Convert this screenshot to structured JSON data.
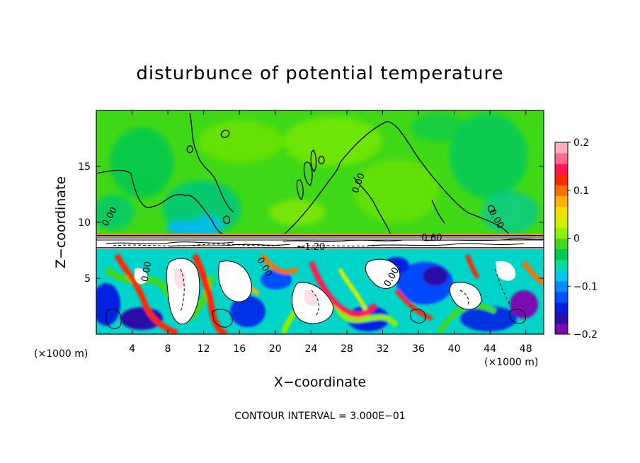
{
  "chart_data": {
    "type": "heatmap",
    "title": "disturbunce of potential temperature",
    "xlabel": "X−coordinate",
    "ylabel": "Z−coordinate",
    "x_unit_left": "(×1000 m)",
    "x_unit_right": "(×1000 m)",
    "footer": "CONTOUR INTERVAL = 3.000E−01",
    "xlim": [
      0,
      50
    ],
    "ylim": [
      0,
      20
    ],
    "x_ticks": [
      4,
      8,
      12,
      16,
      20,
      24,
      28,
      32,
      36,
      40,
      44,
      48
    ],
    "y_ticks": [
      5,
      10,
      15
    ],
    "colorbar": {
      "range": [
        -0.2,
        0.2
      ],
      "tick_values": [
        0.2,
        0.1,
        0,
        -0.1,
        -0.2
      ],
      "tick_labels": [
        "0.2",
        "0.1",
        "0",
        "−0.1",
        "−0.2"
      ],
      "colors": [
        "#7a0bb0",
        "#2a10a8",
        "#0020e0",
        "#0050ff",
        "#008cff",
        "#00c8e8",
        "#00dca0",
        "#00c850",
        "#40d820",
        "#90f000",
        "#d0f000",
        "#f0e000",
        "#ffb000",
        "#ff7000",
        "#ff2800",
        "#ff1a50",
        "#ff6a90",
        "#ffb0b8"
      ]
    },
    "contour_labels": [
      {
        "text": "0.00",
        "x": 1.5,
        "y": 10.5,
        "rotate": -60
      },
      {
        "text": "0.00",
        "x": 29.3,
        "y": 13.5,
        "rotate": -70
      },
      {
        "text": "0.00",
        "x": 44.7,
        "y": 10.3,
        "rotate": 60
      },
      {
        "text": "0.60",
        "x": 37.5,
        "y": 8.6,
        "rotate": 0
      },
      {
        "text": "−1.20",
        "x": 24.0,
        "y": 7.8,
        "rotate": 0
      },
      {
        "text": "0.00",
        "x": 5.6,
        "y": 5.6,
        "rotate": -80
      },
      {
        "text": "0.00",
        "x": 18.8,
        "y": 6.0,
        "rotate": 60
      },
      {
        "text": "0.00",
        "x": 33.0,
        "y": 5.1,
        "rotate": -60
      }
    ]
  }
}
